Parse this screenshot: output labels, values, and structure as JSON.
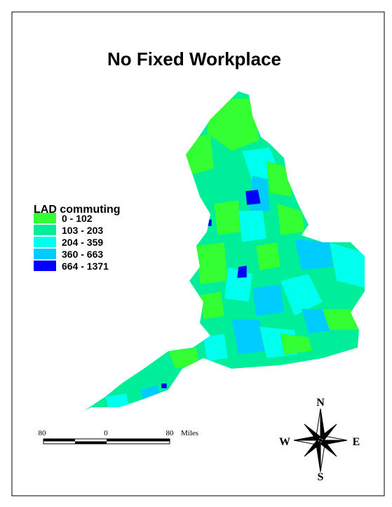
{
  "title": "No Fixed Workplace",
  "legend": {
    "title": "LAD commuting",
    "items": [
      {
        "label": "0 - 102",
        "color": "#33ff33"
      },
      {
        "label": "103 - 203",
        "color": "#00ee99"
      },
      {
        "label": "204 - 359",
        "color": "#00ffee"
      },
      {
        "label": "360 - 663",
        "color": "#00ccff"
      },
      {
        "label": "664 - 1371",
        "color": "#0000ff"
      }
    ]
  },
  "scale_bar": {
    "labels": [
      "80",
      "0",
      "80"
    ],
    "unit": "Miles"
  },
  "compass": {
    "north": "N",
    "south": "S",
    "west": "W",
    "east": "E"
  }
}
